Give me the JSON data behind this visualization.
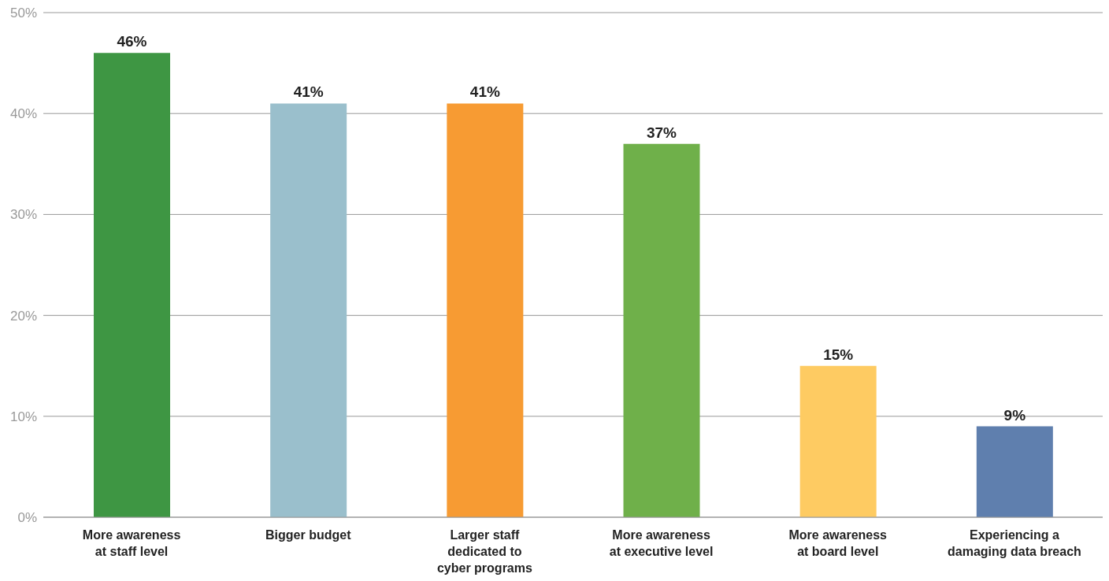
{
  "chart_data": {
    "type": "bar",
    "categories": [
      "More awareness\nat staff level",
      "Bigger budget",
      "Larger staff\ndedicated to\ncyber programs",
      "More awareness\nat executive level",
      "More awareness\nat board level",
      "Experiencing a\ndamaging data breach"
    ],
    "values": [
      46,
      41,
      41,
      37,
      15,
      9
    ],
    "colors": [
      "#3e9643",
      "#9abfcc",
      "#f79b33",
      "#6fb04a",
      "#fecb62",
      "#5f7fae"
    ],
    "value_labels": [
      "46%",
      "41%",
      "41%",
      "37%",
      "15%",
      "9%"
    ],
    "ylim": [
      0,
      50
    ],
    "yticks": [
      {
        "value": 0,
        "label": "0%"
      },
      {
        "value": 10,
        "label": "10%"
      },
      {
        "value": 20,
        "label": "20%"
      },
      {
        "value": 30,
        "label": "30%"
      },
      {
        "value": 40,
        "label": "40%"
      },
      {
        "value": 50,
        "label": "50%"
      }
    ],
    "grid": "y"
  }
}
